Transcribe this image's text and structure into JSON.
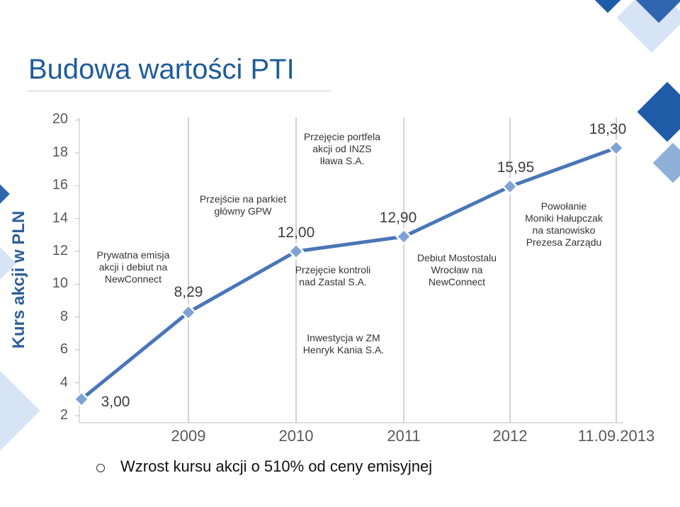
{
  "slide": {
    "title": "Budowa wartości PTI",
    "summary": "Wzrost kursu akcji o 510% od ceny emisyjnej"
  },
  "colors": {
    "line": "#4a76b8",
    "marker_fill": "#7fa3d4",
    "title": "#1f5c99",
    "deco_dark": "#1f5ca8",
    "deco_light": "#d6e4f5"
  },
  "icons": {
    "bullet": "hollow-circle-bullet"
  },
  "chart_data": {
    "type": "line",
    "title": "",
    "ylabel": "Kurs akcji w PLN",
    "xlabel": "",
    "ylim": [
      2,
      20
    ],
    "yticks": [
      2,
      4,
      6,
      8,
      10,
      12,
      14,
      16,
      18,
      20
    ],
    "x_tick_labels": [
      "2009",
      "2010",
      "2011",
      "2012",
      "11.09.2013"
    ],
    "grid": "vertical",
    "series": [
      {
        "values": [
          3.0,
          8.29,
          12.0,
          12.9,
          15.95,
          18.3
        ],
        "labels": [
          "3,00",
          "8,29",
          "12,00",
          "12,90",
          "15,95",
          "18,30"
        ]
      }
    ],
    "annotations": [
      "Prywatna emisja\nakcji i debiut na\nNewConnect",
      "Przejście na parkiet\ngłówny GPW",
      "Przejęcie portfela\nakcji od INZS\nIława S.A.",
      "Przejęcie kontroli\nnad Zastal S.A.",
      "Inwestycja w ZM\nHenryk Kania S.A.",
      "Debiut Mostostalu\nWrocław na\nNewConnect",
      "Powołanie\nMoniki Hałupczak\nna stanowisko\nPrezesa Zarządu"
    ]
  }
}
